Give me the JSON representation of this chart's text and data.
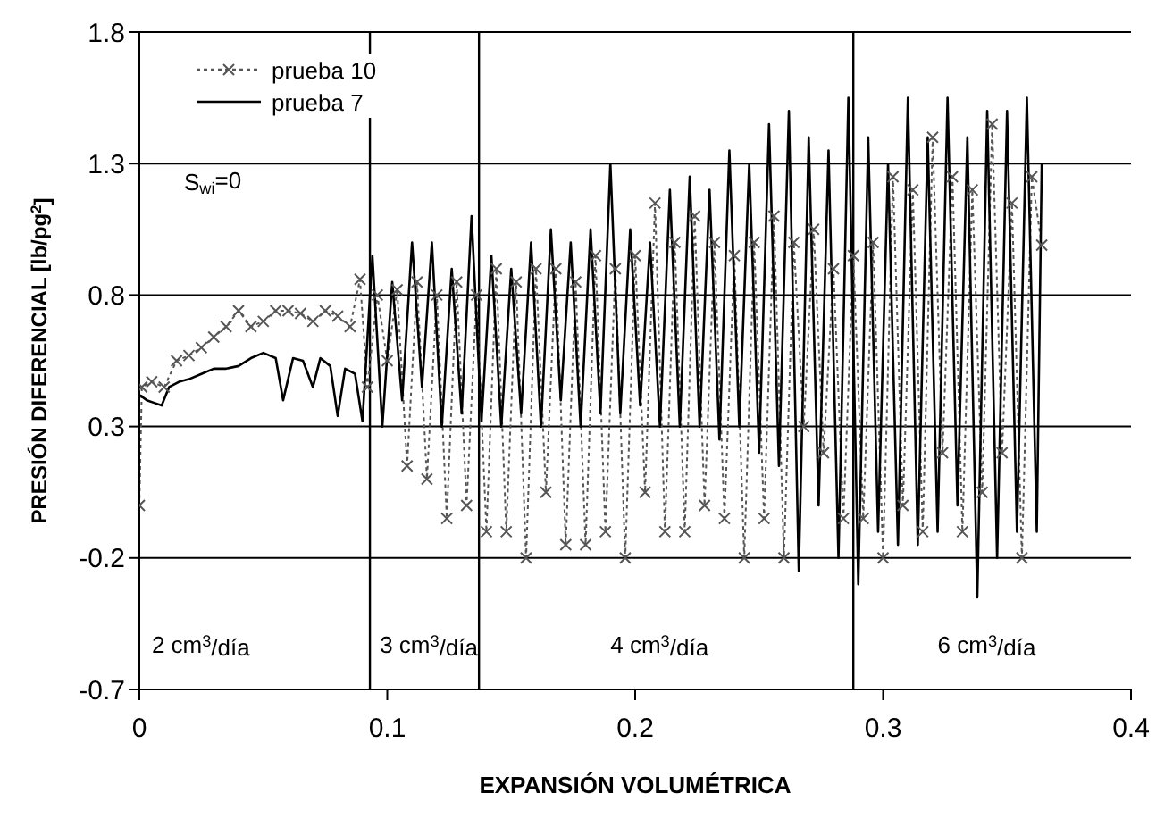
{
  "chart_data": {
    "type": "line",
    "xlabel": "EXPANSIÓN VOLUMÉTRICA",
    "ylabel": "PRESIÓN DIFERENCIAL [lb/pg$^{2}$]",
    "xlim": [
      0,
      0.4
    ],
    "xticks": [
      0,
      0.1,
      0.2,
      0.3,
      0.4
    ],
    "ylim": [
      -0.7,
      1.8
    ],
    "yticks": [
      -0.7,
      -0.2,
      0.3,
      0.8,
      1.3,
      1.8
    ],
    "grid": "y",
    "legend": "top left",
    "ref_lines": [
      {
        "axis": "x",
        "value": 0.093,
        "color": "#000000"
      },
      {
        "axis": "x",
        "value": 0.137,
        "color": "#000000"
      },
      {
        "axis": "x",
        "value": 0.288,
        "color": "#000000"
      }
    ],
    "annotations": [
      "2 cm$^{3}$/día",
      "3 cm$^{3}$/día",
      "4 cm$^{3}$/día",
      "6 cm$^{3}$/día",
      "S$_{wi}$=0"
    ],
    "series": [
      {
        "name": "prueba 10",
        "color": "#555555",
        "marker": "cross",
        "line_style": "dotted",
        "x": [
          0,
          0.001,
          0.005,
          0.01,
          0.015,
          0.02,
          0.025,
          0.03,
          0.035,
          0.04,
          0.045,
          0.05,
          0.055,
          0.06,
          0.065,
          0.07,
          0.075,
          0.08,
          0.085,
          0.089,
          0.092,
          0.096,
          0.1,
          0.104,
          0.108,
          0.112,
          0.116,
          0.12,
          0.124,
          0.128,
          0.132,
          0.136,
          0.14,
          0.144,
          0.148,
          0.152,
          0.156,
          0.16,
          0.164,
          0.168,
          0.172,
          0.176,
          0.18,
          0.184,
          0.188,
          0.192,
          0.196,
          0.2,
          0.204,
          0.208,
          0.212,
          0.216,
          0.22,
          0.224,
          0.228,
          0.232,
          0.236,
          0.24,
          0.244,
          0.248,
          0.252,
          0.256,
          0.26,
          0.264,
          0.268,
          0.272,
          0.276,
          0.28,
          0.284,
          0.288,
          0.292,
          0.296,
          0.3,
          0.304,
          0.308,
          0.312,
          0.316,
          0.32,
          0.324,
          0.328,
          0.332,
          0.336,
          0.34,
          0.344,
          0.348,
          0.352,
          0.356,
          0.36,
          0.364
        ],
        "values": [
          0,
          0.45,
          0.47,
          0.45,
          0.55,
          0.57,
          0.6,
          0.64,
          0.68,
          0.74,
          0.68,
          0.7,
          0.74,
          0.74,
          0.73,
          0.7,
          0.74,
          0.72,
          0.68,
          0.86,
          0.45,
          0.8,
          0.55,
          0.82,
          0.15,
          0.85,
          0.1,
          0.8,
          -0.05,
          0.85,
          0,
          0.8,
          -0.1,
          0.9,
          -0.1,
          0.85,
          -0.2,
          0.9,
          0.05,
          0.9,
          -0.15,
          0.85,
          -0.15,
          0.95,
          -0.1,
          0.9,
          -0.2,
          0.95,
          0.05,
          1.15,
          -0.1,
          1,
          -0.1,
          1.1,
          0,
          1,
          -0.05,
          0.95,
          -0.2,
          1,
          -0.05,
          1.1,
          -0.2,
          1,
          0.3,
          1.05,
          0.2,
          0.9,
          -0.05,
          0.95,
          -0.05,
          1,
          -0.2,
          1.25,
          0,
          1.2,
          -0.1,
          1.4,
          0.2,
          1.25,
          -0.1,
          1.2,
          0.05,
          1.45,
          0.2,
          1.15,
          -0.2,
          1.25,
          0.99
        ]
      },
      {
        "name": "prueba 7",
        "color": "#000000",
        "marker": "none",
        "line_style": "solid",
        "x": [
          0,
          0.003,
          0.006,
          0.009,
          0.012,
          0.016,
          0.02,
          0.025,
          0.03,
          0.035,
          0.04,
          0.045,
          0.05,
          0.055,
          0.058,
          0.062,
          0.066,
          0.07,
          0.073,
          0.077,
          0.08,
          0.083,
          0.087,
          0.09,
          0.094,
          0.098,
          0.102,
          0.106,
          0.11,
          0.114,
          0.118,
          0.122,
          0.126,
          0.13,
          0.134,
          0.138,
          0.142,
          0.146,
          0.15,
          0.154,
          0.158,
          0.162,
          0.166,
          0.17,
          0.174,
          0.178,
          0.182,
          0.186,
          0.19,
          0.194,
          0.198,
          0.202,
          0.206,
          0.21,
          0.214,
          0.218,
          0.222,
          0.226,
          0.23,
          0.234,
          0.238,
          0.242,
          0.246,
          0.25,
          0.254,
          0.258,
          0.262,
          0.266,
          0.27,
          0.274,
          0.278,
          0.282,
          0.286,
          0.29,
          0.294,
          0.298,
          0.302,
          0.306,
          0.31,
          0.314,
          0.318,
          0.322,
          0.326,
          0.33,
          0.334,
          0.338,
          0.342,
          0.346,
          0.35,
          0.354,
          0.358,
          0.362,
          0.364
        ],
        "values": [
          0.42,
          0.4,
          0.39,
          0.38,
          0.45,
          0.47,
          0.48,
          0.5,
          0.52,
          0.52,
          0.53,
          0.56,
          0.58,
          0.56,
          0.4,
          0.56,
          0.55,
          0.45,
          0.56,
          0.53,
          0.34,
          0.52,
          0.5,
          0.32,
          0.95,
          0.3,
          0.85,
          0.4,
          1,
          0.45,
          1,
          0.3,
          0.9,
          0.35,
          1.1,
          0.32,
          0.95,
          0.3,
          0.9,
          0.35,
          1,
          0.3,
          1.05,
          0.4,
          1,
          0.3,
          1.05,
          0.35,
          1.3,
          0.35,
          1.05,
          0.38,
          1,
          0.3,
          1.2,
          0.3,
          1.25,
          0.3,
          1.2,
          0.25,
          1.35,
          0.3,
          1.3,
          0.2,
          1.45,
          0.15,
          1.5,
          -0.25,
          1.4,
          0,
          1.35,
          -0.2,
          1.55,
          -0.3,
          1.4,
          -0.1,
          1.3,
          -0.15,
          1.55,
          -0.15,
          1.4,
          -0.1,
          1.55,
          0,
          1.4,
          -0.35,
          1.5,
          -0.2,
          1.5,
          -0.1,
          1.55,
          -0.1,
          1.3
        ]
      }
    ]
  }
}
